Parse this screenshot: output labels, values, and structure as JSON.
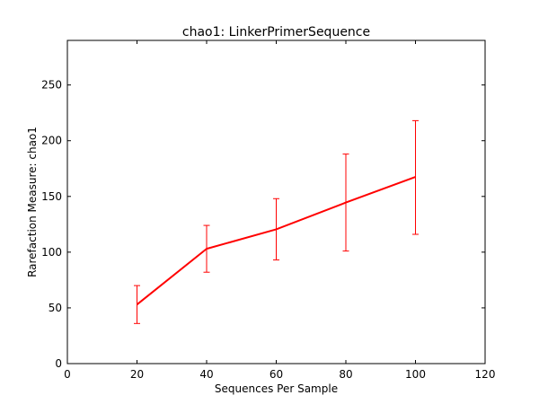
{
  "chart_data": {
    "type": "line",
    "title": "chao1: LinkerPrimerSequence",
    "xlabel": "Sequences Per Sample",
    "ylabel": "Rarefaction Measure: chao1",
    "xlim": [
      0,
      120
    ],
    "ylim": [
      0,
      290
    ],
    "xticks": [
      0,
      20,
      40,
      60,
      80,
      100,
      120
    ],
    "yticks": [
      0,
      50,
      100,
      150,
      200,
      250
    ],
    "grid": false,
    "series": [
      {
        "color": "#ff0000",
        "x": [
          20,
          40,
          60,
          80,
          100
        ],
        "y": [
          53,
          103,
          120.5,
          144.5,
          167.5
        ],
        "err_low": [
          36,
          82,
          93,
          101,
          116
        ],
        "err_high": [
          70,
          124,
          148,
          188,
          218
        ]
      }
    ]
  }
}
